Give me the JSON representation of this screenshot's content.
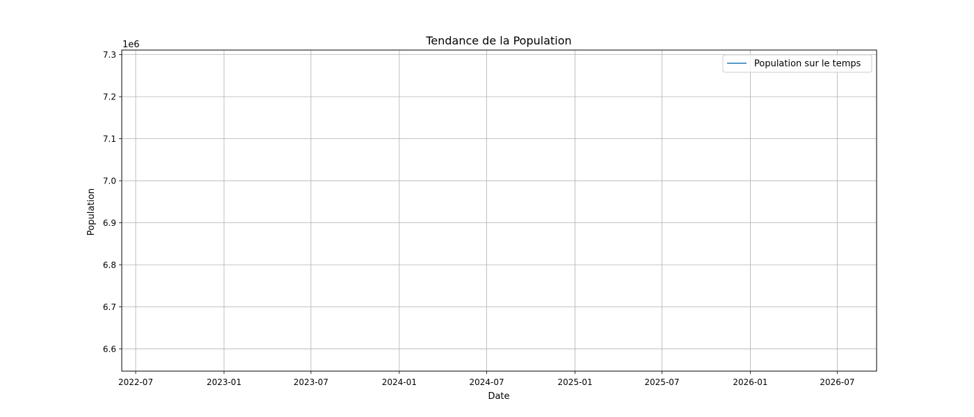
{
  "chart_data": {
    "type": "line",
    "title": "Tendance de la Population",
    "xlabel": "Date",
    "ylabel": "Population",
    "y_offset_text": "1e6",
    "x_range": [
      "2022-06-02",
      "2026-09-21"
    ],
    "y_range": [
      6547000,
      7311000
    ],
    "x_ticks": [
      "2022-07-01",
      "2023-01-01",
      "2023-07-01",
      "2024-01-01",
      "2024-07-01",
      "2025-01-01",
      "2025-07-01",
      "2026-01-01",
      "2026-07-01"
    ],
    "x_tick_labels": [
      "2022-07",
      "2023-01",
      "2023-07",
      "2024-01",
      "2024-07",
      "2025-01",
      "2025-07",
      "2026-01",
      "2026-07"
    ],
    "y_ticks": [
      6600000,
      6700000,
      6800000,
      6900000,
      7000000,
      7100000,
      7200000,
      7300000
    ],
    "y_tick_labels": [
      "6.6",
      "6.7",
      "6.8",
      "6.9",
      "7.0",
      "7.1",
      "7.2",
      "7.3"
    ],
    "grid": true,
    "legend_position": "top-right",
    "series": [
      {
        "name": "Population sur le temps",
        "color": "#1f77b4",
        "x": [],
        "y": []
      }
    ]
  }
}
